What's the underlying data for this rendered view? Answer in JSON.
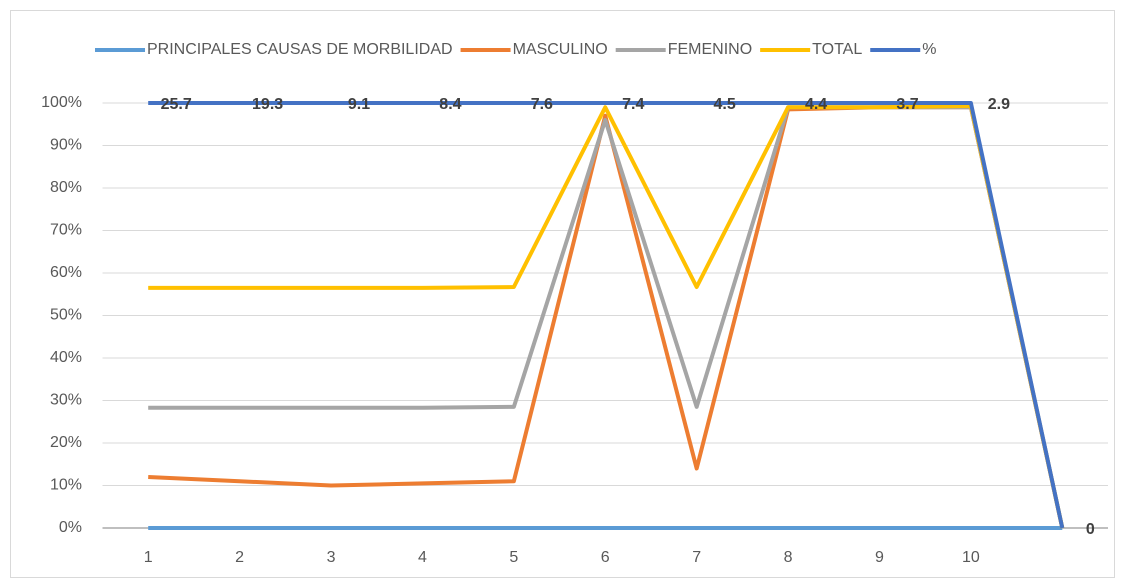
{
  "chart_data": {
    "type": "line",
    "categories": [
      "1",
      "2",
      "3",
      "4",
      "5",
      "6",
      "7",
      "8",
      "9",
      "10",
      null
    ],
    "series": [
      {
        "name": "PRINCIPALES CAUSAS DE MORBILIDAD",
        "color": "#5b9bd5",
        "values": [
          0,
          0,
          0,
          0,
          0,
          0,
          0,
          0,
          0,
          0,
          0
        ]
      },
      {
        "name": "MASCULINO",
        "color": "#ed7d31",
        "values": [
          12,
          11,
          10,
          10.5,
          11,
          97,
          14,
          98.5,
          99,
          99,
          0
        ]
      },
      {
        "name": "FEMENINO",
        "color": "#a5a5a5",
        "values": [
          28.3,
          28.3,
          28.3,
          28.3,
          28.5,
          96,
          28.5,
          99,
          99,
          99,
          0
        ]
      },
      {
        "name": "TOTAL",
        "color": "#ffc000",
        "values": [
          56.5,
          56.5,
          56.5,
          56.5,
          56.7,
          99,
          56.7,
          99,
          99,
          99.3,
          0
        ]
      },
      {
        "name": "%",
        "color": "#4472c4",
        "values": [
          100,
          100,
          100,
          100,
          100,
          100,
          100,
          100,
          100,
          100,
          0
        ],
        "annotations": [
          "25.7",
          "19.3",
          "9.1",
          "8.4",
          "7.6",
          "7.4",
          "4.5",
          "4.4",
          "3.7",
          "2.9",
          "0"
        ]
      }
    ],
    "ylim": [
      0,
      100
    ],
    "yticks": [
      {
        "value": 0,
        "label": "0%"
      },
      {
        "value": 10,
        "label": "10%"
      },
      {
        "value": 20,
        "label": "20%"
      },
      {
        "value": 30,
        "label": "30%"
      },
      {
        "value": 40,
        "label": "40%"
      },
      {
        "value": 50,
        "label": "50%"
      },
      {
        "value": 60,
        "label": "60%"
      },
      {
        "value": 70,
        "label": "70%"
      },
      {
        "value": 80,
        "label": "80%"
      },
      {
        "value": 90,
        "label": "90%"
      },
      {
        "value": 100,
        "label": "100%"
      }
    ],
    "grid": true,
    "legend": "top"
  }
}
